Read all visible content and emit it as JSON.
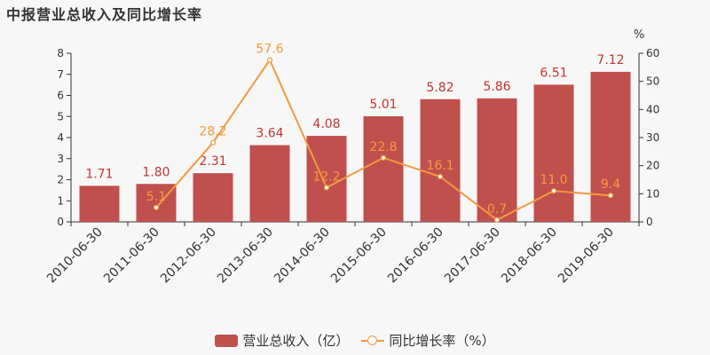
{
  "chart_data": {
    "type": "bar+line",
    "title": "中报营业总收入及同比增长率",
    "categories": [
      "2010-06-30",
      "2011-06-30",
      "2012-06-30",
      "2013-06-30",
      "2014-06-30",
      "2015-06-30",
      "2016-06-30",
      "2017-06-30",
      "2018-06-30",
      "2019-06-30"
    ],
    "series": [
      {
        "name": "营业总收入（亿）",
        "type": "bar",
        "axis": "left",
        "color": "#c0504d",
        "values": [
          1.71,
          1.8,
          2.31,
          3.64,
          4.08,
          5.01,
          5.82,
          5.86,
          6.51,
          7.12
        ],
        "labels": [
          "1.71",
          "1.80",
          "2.31",
          "3.64",
          "4.08",
          "5.01",
          "5.82",
          "5.86",
          "6.51",
          "7.12"
        ]
      },
      {
        "name": "同比增长率（%）",
        "type": "line",
        "axis": "right",
        "color": "#f39a3f",
        "values": [
          null,
          5.1,
          28.2,
          57.6,
          12.2,
          22.8,
          16.1,
          0.7,
          11.0,
          9.4
        ],
        "labels": [
          "",
          "5.1",
          "28.2",
          "57.6",
          "12.2",
          "22.8",
          "16.1",
          "0.7",
          "11.0",
          "9.4"
        ]
      }
    ],
    "y_left": {
      "min": 0,
      "max": 8,
      "ticks": [
        "0",
        "1",
        "2",
        "3",
        "4",
        "5",
        "6",
        "7",
        "8"
      ]
    },
    "y_right": {
      "min": 0,
      "max": 60,
      "unit": "%",
      "ticks": [
        "0",
        "10",
        "20",
        "30",
        "40",
        "50",
        "60"
      ]
    },
    "legend_position": "bottom-center",
    "grid": false
  }
}
